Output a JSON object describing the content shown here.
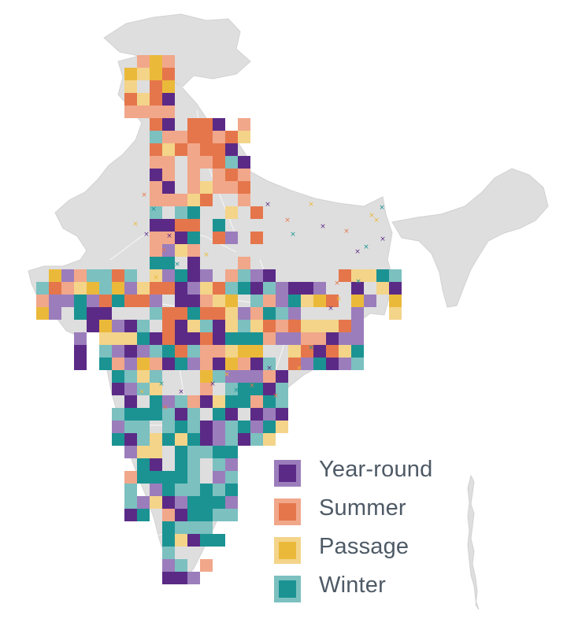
{
  "map": {
    "colors": {
      "land": "#dedede",
      "land_outline": "#d2d2d2",
      "state_lines": "#ffffff",
      "year_round": "#5b2a86",
      "year_round_light": "#9b7dbc",
      "summer": "#e5764b",
      "summer_light": "#f1a78a",
      "passage": "#ebb93a",
      "passage_light": "#f3d489",
      "winter": "#1b9393",
      "winter_light": "#7cc0c0"
    }
  },
  "legend": {
    "items": [
      {
        "label": "Year-round",
        "color": "#5b2a86",
        "border": "#9b7dbc",
        "icon": "year-round-swatch"
      },
      {
        "label": "Summer",
        "color": "#e5764b",
        "border": "#f1a78a",
        "icon": "summer-swatch"
      },
      {
        "label": "Passage",
        "color": "#ebb93a",
        "border": "#f3d489",
        "icon": "passage-swatch"
      },
      {
        "label": "Winter",
        "color": "#1b9393",
        "border": "#7cc0c0",
        "icon": "winter-swatch"
      }
    ]
  }
}
